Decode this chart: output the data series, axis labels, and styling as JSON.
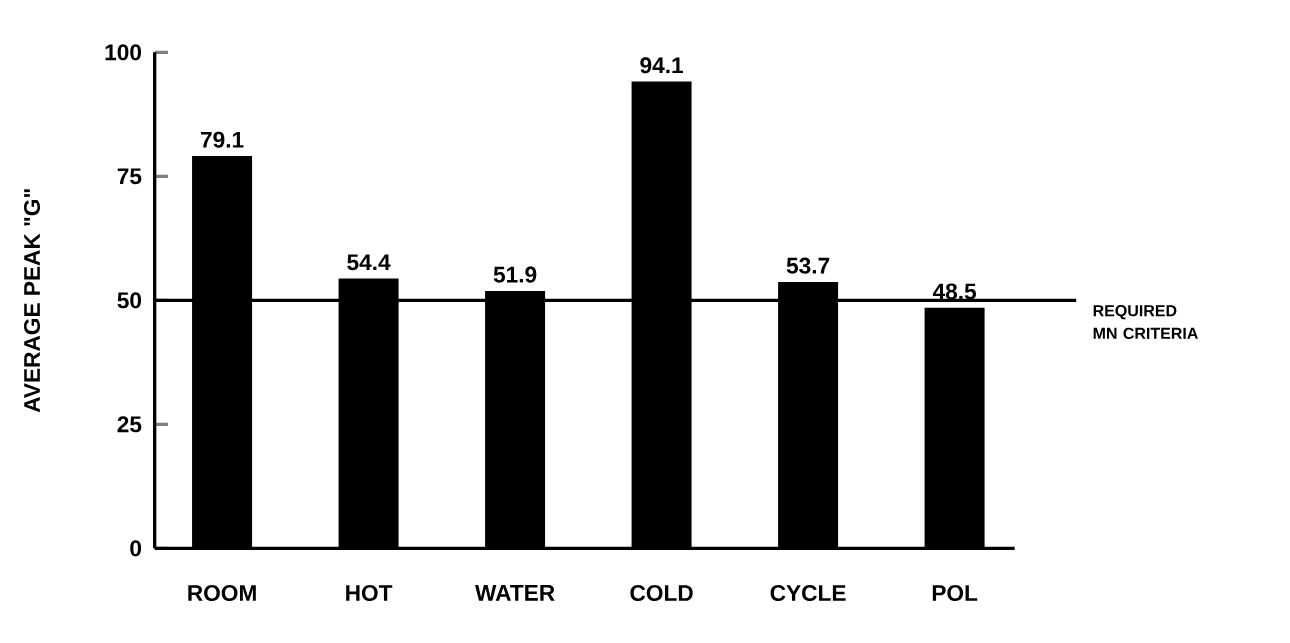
{
  "chart_data": {
    "type": "bar",
    "ylabel": "AVERAGE   PEAK   \"G\"",
    "categories": [
      "ROOM",
      "HOT",
      "WATER",
      "COLD",
      "CYCLE",
      "POL"
    ],
    "values": [
      79.1,
      54.4,
      51.9,
      94.1,
      53.7,
      48.5
    ],
    "color": "#000000",
    "data_labels": true,
    "ylim": [
      0,
      100
    ],
    "yticks": [
      0,
      25,
      50,
      75,
      100
    ],
    "ref_lines": [
      {
        "axis": "y",
        "value": 50,
        "label": "REQUIRED MN CRITERIA",
        "color": "#000000"
      }
    ],
    "grid": false
  }
}
